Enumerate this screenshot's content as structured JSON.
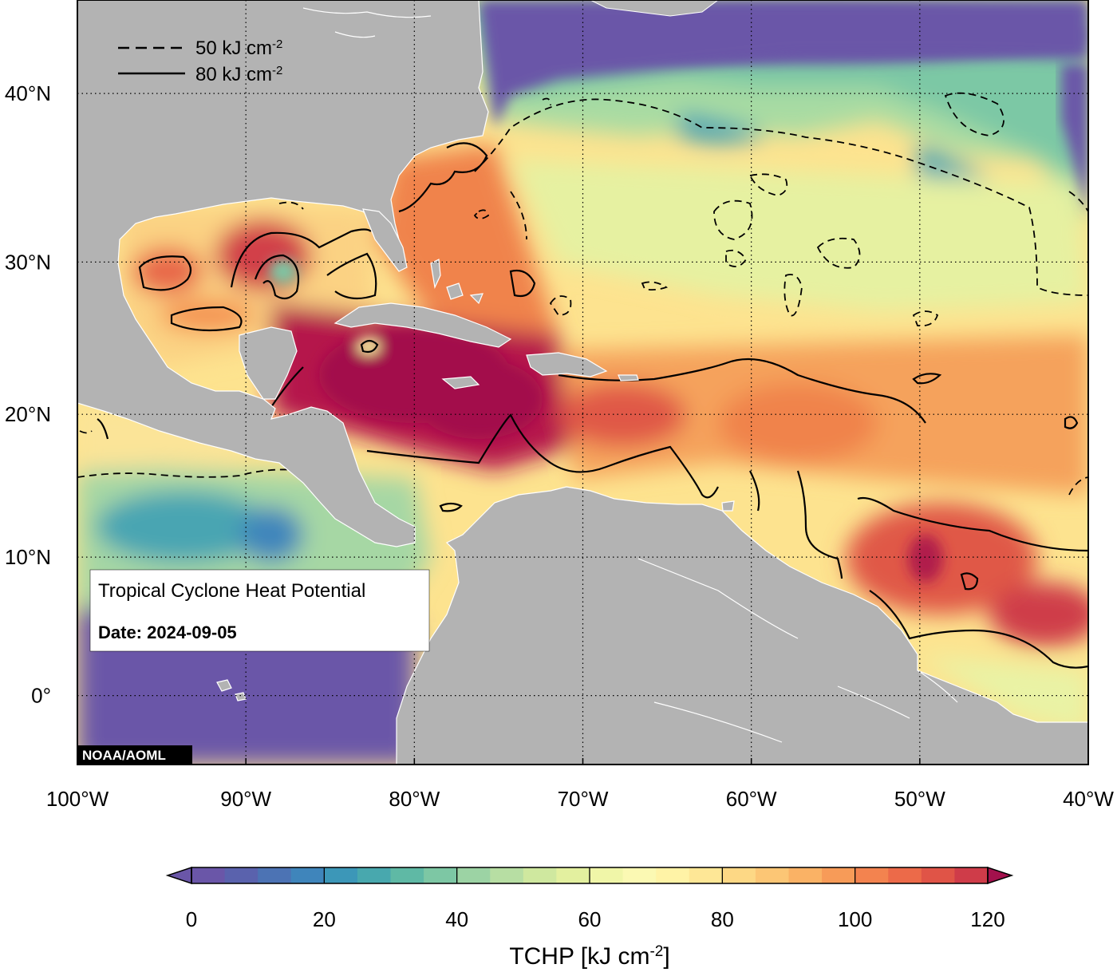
{
  "map": {
    "title": "Tropical Cyclone Heat Potential",
    "date_label": "Date: 2024-09-05",
    "credit": "NOAA/AOML",
    "legend": [
      {
        "style": "dashed",
        "value": "50",
        "unit": "kJ cm",
        "exp": "-2"
      },
      {
        "style": "solid",
        "value": "80",
        "unit": "kJ cm",
        "exp": "-2"
      }
    ],
    "lon_ticks": [
      "100°W",
      "90°W",
      "80°W",
      "70°W",
      "60°W",
      "50°W",
      "40°W"
    ],
    "lat_ticks": [
      "40°N",
      "30°N",
      "20°N",
      "10°N",
      "0°"
    ],
    "lon_values": [
      -100,
      -90,
      -80,
      -70,
      -60,
      -50,
      -40
    ],
    "lat_values": [
      40,
      30,
      20,
      10,
      0
    ],
    "extent": {
      "lon": [
        -100,
        -40
      ],
      "lat": [
        -5,
        45
      ]
    },
    "land_color": "#b3b3b3",
    "coast_color": "#ffffff"
  },
  "colorbar": {
    "label_main": "TCHP [kJ cm",
    "label_exp": "-2",
    "label_end": "]",
    "tick_labels": [
      "0",
      "20",
      "40",
      "60",
      "80",
      "100",
      "120"
    ],
    "tick_values": [
      0,
      20,
      40,
      60,
      80,
      100,
      120
    ],
    "range": [
      0,
      120
    ],
    "step": 5,
    "colors": [
      "#6a56a8",
      "#5a62ad",
      "#4c73b4",
      "#3f85bb",
      "#3c97b8",
      "#48a8ae",
      "#5fb9a5",
      "#7dc7a4",
      "#9cd3a4",
      "#b7dea3",
      "#cfe89f",
      "#e3f09f",
      "#f0f6a8",
      "#fbf9b3",
      "#fff3a6",
      "#fee796",
      "#fdd885",
      "#fcc675",
      "#fab265",
      "#f79b58",
      "#f3834f",
      "#ec6a49",
      "#e05447",
      "#cf3c49",
      "#b8204c"
    ],
    "under_color": "#6a56a8",
    "over_color": "#a3104c"
  }
}
